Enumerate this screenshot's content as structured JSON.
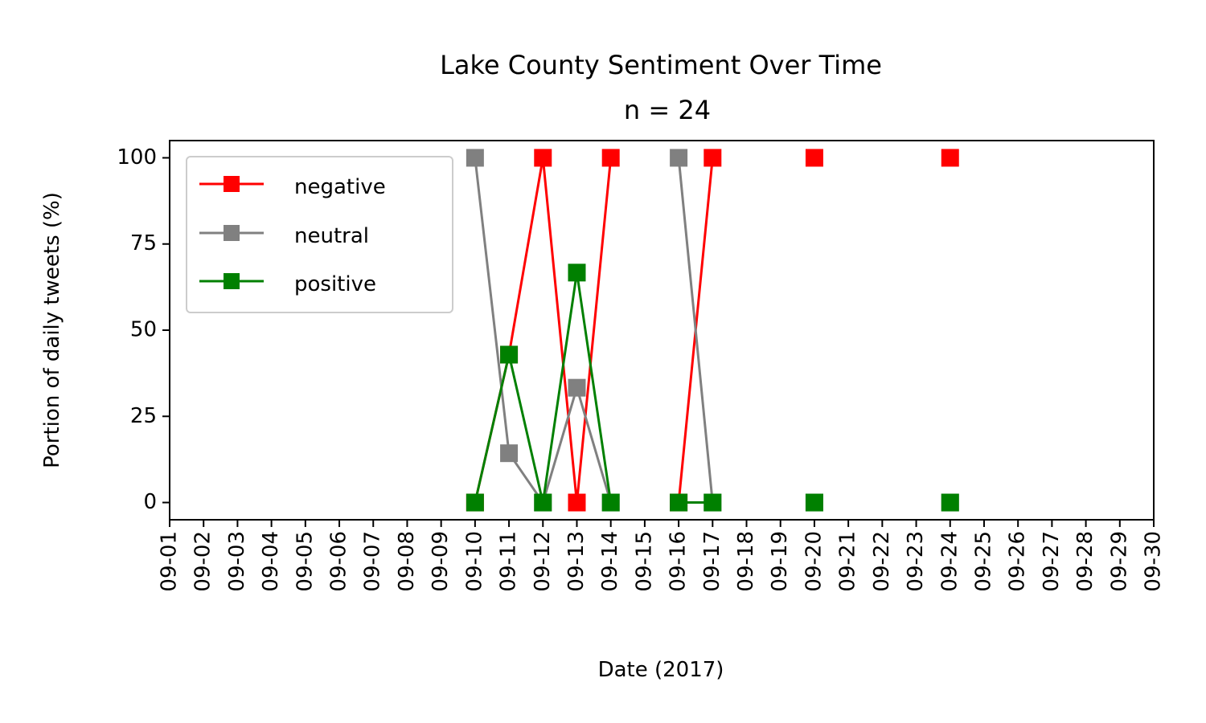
{
  "chart_data": {
    "type": "line",
    "title": "Lake County Sentiment Over Time",
    "subtitle": "n = 24",
    "xlabel": "Date (2017)",
    "ylabel": "Portion of daily tweets (%)",
    "x_ticks": [
      "09-01",
      "09-02",
      "09-03",
      "09-04",
      "09-05",
      "09-06",
      "09-07",
      "09-08",
      "09-09",
      "09-10",
      "09-11",
      "09-12",
      "09-13",
      "09-14",
      "09-15",
      "09-16",
      "09-17",
      "09-18",
      "09-19",
      "09-20",
      "09-21",
      "09-22",
      "09-23",
      "09-24",
      "09-25",
      "09-26",
      "09-27",
      "09-28",
      "09-29",
      "09-30"
    ],
    "y_ticks": [
      0,
      25,
      50,
      75,
      100
    ],
    "ylim": [
      -5,
      105
    ],
    "grid": false,
    "legend_position": "upper-left",
    "marker": "square",
    "series": [
      {
        "name": "negative",
        "color": "#ff0000",
        "segments": [
          [
            [
              "09-10",
              0
            ],
            [
              "09-11",
              42.9
            ],
            [
              "09-12",
              100
            ],
            [
              "09-13",
              0
            ],
            [
              "09-14",
              100
            ]
          ],
          [
            [
              "09-16",
              0
            ],
            [
              "09-17",
              100
            ]
          ],
          [
            [
              "09-20",
              100
            ]
          ],
          [
            [
              "09-24",
              100
            ]
          ]
        ]
      },
      {
        "name": "neutral",
        "color": "#808080",
        "segments": [
          [
            [
              "09-10",
              100
            ],
            [
              "09-11",
              14.3
            ],
            [
              "09-12",
              0
            ],
            [
              "09-13",
              33.3
            ],
            [
              "09-14",
              0
            ]
          ],
          [
            [
              "09-16",
              100
            ],
            [
              "09-17",
              0
            ]
          ],
          [
            [
              "09-20",
              0
            ]
          ],
          [
            [
              "09-24",
              0
            ]
          ]
        ]
      },
      {
        "name": "positive",
        "color": "#008000",
        "segments": [
          [
            [
              "09-10",
              0
            ],
            [
              "09-11",
              42.9
            ],
            [
              "09-12",
              0
            ],
            [
              "09-13",
              66.7
            ],
            [
              "09-14",
              0
            ]
          ],
          [
            [
              "09-16",
              0
            ],
            [
              "09-17",
              0
            ]
          ],
          [
            [
              "09-20",
              0
            ]
          ],
          [
            [
              "09-24",
              0
            ]
          ]
        ]
      }
    ]
  }
}
